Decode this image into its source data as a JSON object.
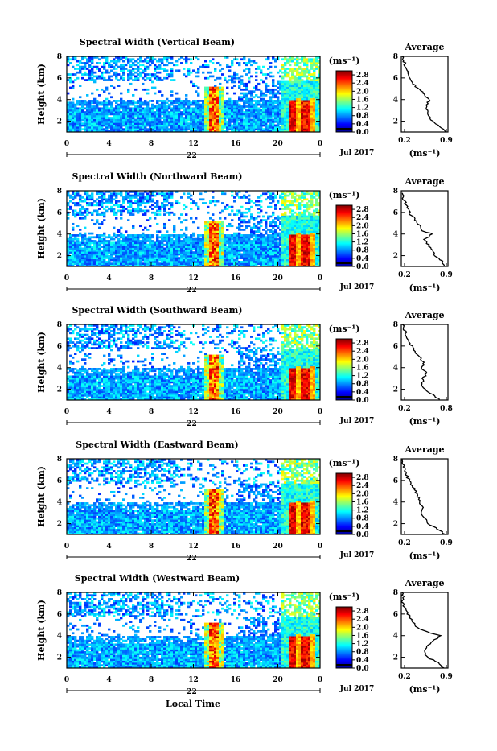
{
  "chart_data": [
    {
      "type": "heatmap",
      "title": "Spectral Width (Vertical Beam)",
      "ylabel": "Height (km)",
      "yticks": [
        "2",
        "4",
        "6",
        "8"
      ],
      "ylim": [
        1,
        8
      ],
      "xticks": [
        "0",
        "4",
        "8",
        "12",
        "16",
        "20",
        "0"
      ],
      "xlim_hours": [
        0,
        24
      ],
      "day_label": "22",
      "month_label": "Jul 2017",
      "colorbar": {
        "unit": "(ms⁻¹)",
        "ticks": [
          "0.0",
          "0.4",
          "0.8",
          "1.2",
          "1.6",
          "2.0",
          "2.4",
          "2.8"
        ],
        "range": [
          0.0,
          3.0
        ]
      },
      "average": {
        "title": "Average",
        "xlabel": "(ms⁻¹)",
        "xticks": [
          "0.2",
          "0.9"
        ],
        "yticks": [
          "2",
          "4",
          "6",
          "8"
        ],
        "xlim": [
          0.1,
          1.0
        ],
        "profile": [
          [
            0.95,
            1.0
          ],
          [
            0.85,
            1.5
          ],
          [
            0.7,
            2.0
          ],
          [
            0.62,
            2.5
          ],
          [
            0.6,
            3.0
          ],
          [
            0.58,
            3.5
          ],
          [
            0.65,
            4.0
          ],
          [
            0.55,
            4.3
          ],
          [
            0.5,
            4.7
          ],
          [
            0.38,
            5.2
          ],
          [
            0.3,
            5.7
          ],
          [
            0.25,
            6.2
          ],
          [
            0.2,
            6.7
          ],
          [
            0.17,
            7.2
          ],
          [
            0.15,
            7.6
          ],
          [
            0.12,
            8.0
          ]
        ]
      }
    },
    {
      "type": "heatmap",
      "title": "Spectral Width (Northward Beam)",
      "ylabel": "Height (km)",
      "yticks": [
        "2",
        "4",
        "6",
        "8"
      ],
      "ylim": [
        1,
        8
      ],
      "xticks": [
        "0",
        "4",
        "8",
        "12",
        "16",
        "20",
        "0"
      ],
      "xlim_hours": [
        0,
        24
      ],
      "day_label": "22",
      "month_label": "Jul 2017",
      "colorbar": {
        "unit": "(ms⁻¹)",
        "ticks": [
          "0.0",
          "0.4",
          "0.8",
          "1.2",
          "1.6",
          "2.0",
          "2.4",
          "2.8"
        ],
        "range": [
          0.0,
          3.0
        ]
      },
      "average": {
        "title": "Average",
        "xlabel": "(ms⁻¹)",
        "xticks": [
          "0.2",
          "0.9"
        ],
        "yticks": [
          "2",
          "4",
          "6",
          "8"
        ],
        "xlim": [
          0.1,
          1.0
        ],
        "profile": [
          [
            0.92,
            1.0
          ],
          [
            0.88,
            1.5
          ],
          [
            0.75,
            2.0
          ],
          [
            0.7,
            2.5
          ],
          [
            0.62,
            3.0
          ],
          [
            0.55,
            3.5
          ],
          [
            0.7,
            4.0
          ],
          [
            0.5,
            4.3
          ],
          [
            0.45,
            4.8
          ],
          [
            0.38,
            5.3
          ],
          [
            0.28,
            5.8
          ],
          [
            0.22,
            6.3
          ],
          [
            0.18,
            6.8
          ],
          [
            0.14,
            7.3
          ],
          [
            0.12,
            7.8
          ]
        ]
      }
    },
    {
      "type": "heatmap",
      "title": "Spectral Width (Southward Beam)",
      "ylabel": "Height (km)",
      "yticks": [
        "2",
        "4",
        "6",
        "8"
      ],
      "ylim": [
        1,
        8
      ],
      "xticks": [
        "0",
        "4",
        "8",
        "12",
        "16",
        "20",
        "0"
      ],
      "xlim_hours": [
        0,
        24
      ],
      "day_label": "22",
      "month_label": "Jul 2017",
      "colorbar": {
        "unit": "(ms⁻¹)",
        "ticks": [
          "0.0",
          "0.4",
          "0.8",
          "1.2",
          "1.6",
          "2.0",
          "2.4",
          "2.8"
        ],
        "range": [
          0.0,
          3.0
        ]
      },
      "average": {
        "title": "Average",
        "xlabel": "(ms⁻¹)",
        "xticks": [
          "0.2",
          "0.8"
        ],
        "yticks": [
          "2",
          "4",
          "6",
          "8"
        ],
        "xlim": [
          0.1,
          0.9
        ],
        "profile": [
          [
            0.75,
            1.0
          ],
          [
            0.65,
            1.5
          ],
          [
            0.5,
            2.0
          ],
          [
            0.45,
            2.5
          ],
          [
            0.48,
            3.0
          ],
          [
            0.52,
            3.5
          ],
          [
            0.45,
            4.0
          ],
          [
            0.5,
            4.5
          ],
          [
            0.4,
            5.0
          ],
          [
            0.32,
            5.5
          ],
          [
            0.28,
            6.0
          ],
          [
            0.22,
            6.5
          ],
          [
            0.18,
            7.0
          ],
          [
            0.15,
            7.5
          ],
          [
            0.12,
            8.0
          ]
        ]
      }
    },
    {
      "type": "heatmap",
      "title": "Spectral Width (Eastward Beam)",
      "ylabel": "Height (km)",
      "yticks": [
        "2",
        "4",
        "6",
        "8"
      ],
      "ylim": [
        1,
        8
      ],
      "xticks": [
        "0",
        "4",
        "8",
        "12",
        "16",
        "20",
        "0"
      ],
      "xlim_hours": [
        0,
        24
      ],
      "day_label": "22",
      "month_label": "Jul 2017",
      "colorbar": {
        "unit": "(ms⁻¹)",
        "ticks": [
          "0.0",
          "0.4",
          "0.8",
          "1.2",
          "1.6",
          "2.0",
          "2.4",
          "2.8"
        ],
        "range": [
          0.0,
          3.0
        ]
      },
      "average": {
        "title": "Average",
        "xlabel": "(ms⁻¹)",
        "xticks": [
          "0.2",
          "0.9"
        ],
        "yticks": [
          "2",
          "4",
          "6",
          "8"
        ],
        "xlim": [
          0.1,
          1.0
        ],
        "profile": [
          [
            0.95,
            1.0
          ],
          [
            0.8,
            1.5
          ],
          [
            0.62,
            2.0
          ],
          [
            0.55,
            2.5
          ],
          [
            0.5,
            3.0
          ],
          [
            0.52,
            3.5
          ],
          [
            0.45,
            4.0
          ],
          [
            0.42,
            4.5
          ],
          [
            0.38,
            5.0
          ],
          [
            0.3,
            5.5
          ],
          [
            0.25,
            6.0
          ],
          [
            0.2,
            6.5
          ],
          [
            0.17,
            7.0
          ],
          [
            0.14,
            7.5
          ],
          [
            0.12,
            8.0
          ]
        ]
      }
    },
    {
      "type": "heatmap",
      "title": "Spectral Width (Westward Beam)",
      "ylabel": "Height (km)",
      "yticks": [
        "2",
        "4",
        "6",
        "8"
      ],
      "ylim": [
        1,
        8
      ],
      "xticks": [
        "0",
        "4",
        "8",
        "12",
        "16",
        "20",
        "0"
      ],
      "xlim_hours": [
        0,
        24
      ],
      "day_label": "22",
      "month_label": "Jul 2017",
      "colorbar": {
        "unit": "(ms⁻¹)",
        "ticks": [
          "0.0",
          "0.4",
          "0.8",
          "1.2",
          "1.6",
          "2.0",
          "2.4",
          "2.8"
        ],
        "range": [
          0.0,
          3.0
        ]
      },
      "average": {
        "title": "Average",
        "xlabel": "(ms⁻¹)",
        "xticks": [
          "0.2",
          "0.9"
        ],
        "yticks": [
          "2",
          "4",
          "6",
          "8"
        ],
        "xlim": [
          0.1,
          1.0
        ],
        "profile": [
          [
            0.92,
            1.0
          ],
          [
            0.8,
            1.5
          ],
          [
            0.6,
            2.0
          ],
          [
            0.55,
            2.5
          ],
          [
            0.6,
            3.0
          ],
          [
            0.72,
            3.5
          ],
          [
            0.85,
            4.0
          ],
          [
            0.5,
            4.5
          ],
          [
            0.35,
            5.0
          ],
          [
            0.3,
            5.5
          ],
          [
            0.22,
            6.0
          ],
          [
            0.18,
            6.5
          ],
          [
            0.12,
            7.0
          ],
          [
            0.14,
            7.5
          ],
          [
            0.12,
            8.0
          ]
        ]
      }
    }
  ],
  "footer": {
    "xlabel": "Local Time"
  }
}
